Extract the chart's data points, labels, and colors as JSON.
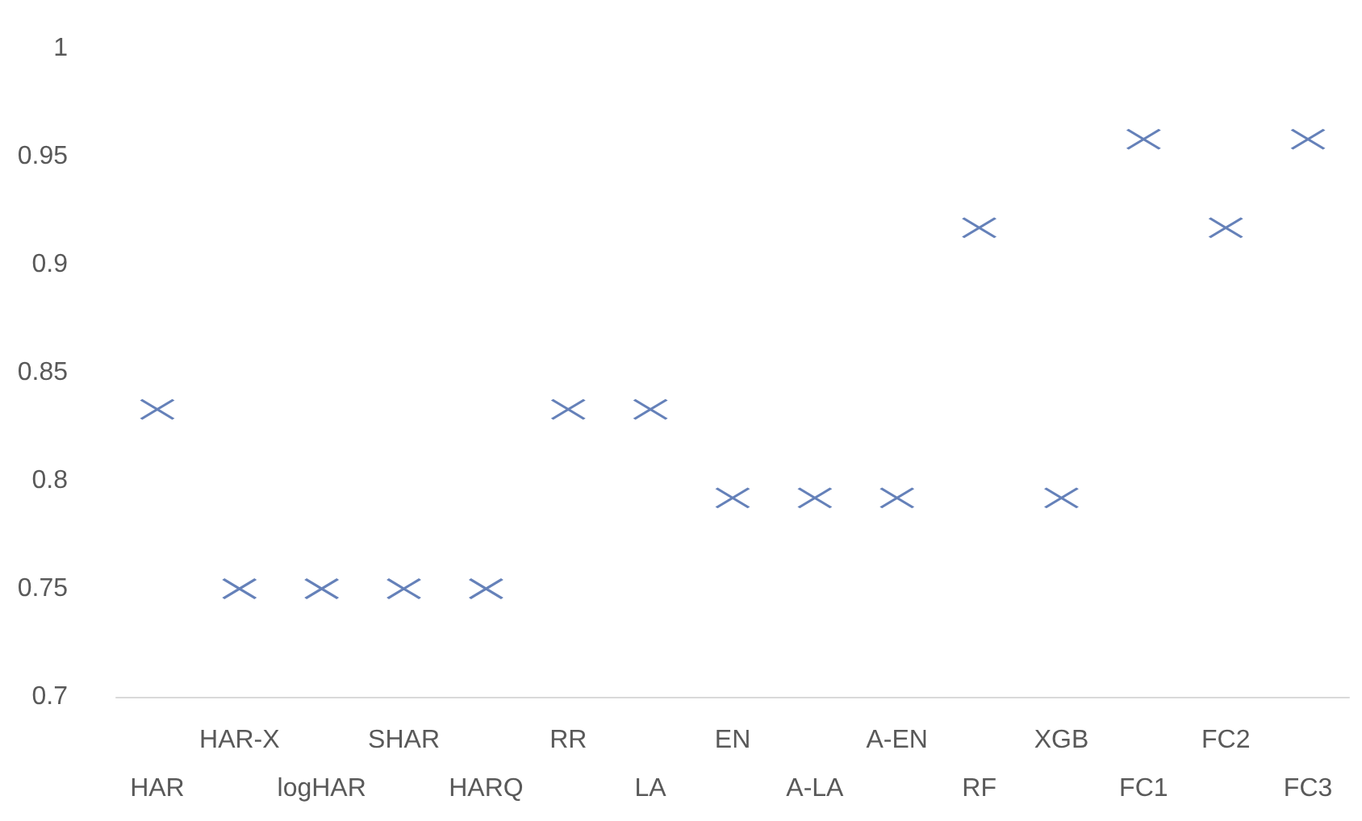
{
  "chart_data": {
    "type": "scatter",
    "categories": [
      "HAR",
      "HAR-X",
      "logHAR",
      "SHAR",
      "HARQ",
      "RR",
      "LA",
      "EN",
      "A-LA",
      "A-EN",
      "RF",
      "XGB",
      "FC1",
      "FC2",
      "FC3"
    ],
    "series": [
      {
        "color": "#3f62a8",
        "values": [
          0.833,
          0.75,
          0.75,
          0.75,
          0.75,
          0.833,
          0.833,
          0.792,
          0.792,
          0.792,
          0.917,
          0.792,
          0.958,
          0.917,
          0.958
        ]
      }
    ],
    "ylim": [
      0.7,
      1
    ],
    "yticks": [
      0.7,
      0.75,
      0.8,
      0.85,
      0.9,
      0.95,
      1
    ],
    "grid": false,
    "marker": "cross"
  }
}
